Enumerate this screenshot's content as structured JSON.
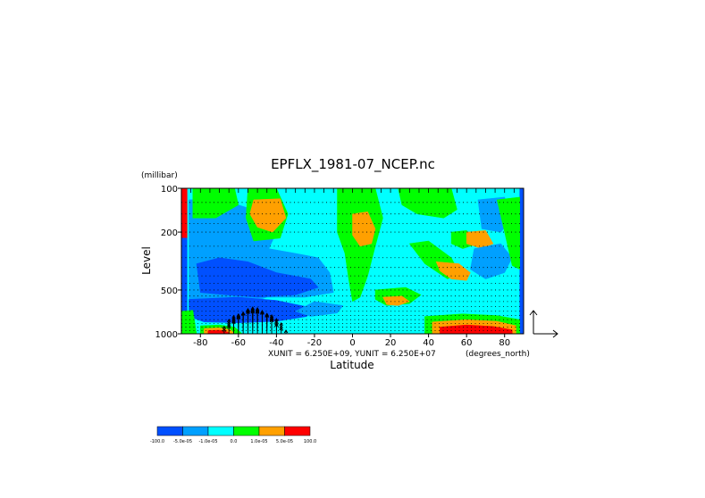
{
  "chart_data": {
    "type": "heatmap",
    "title": "EPFLX_1981-07_NCEP.nc",
    "xlabel": "Latitude",
    "x_units": "(degrees_north)",
    "ylabel": "Level",
    "y_units": "(millibar)",
    "x_ticks": [
      -80,
      -60,
      -40,
      -20,
      0,
      20,
      40,
      60,
      80
    ],
    "x_tick_labels": [
      "-80",
      "-60",
      "-40",
      "-20",
      "0",
      "20",
      "40",
      "60",
      "80"
    ],
    "y_ticks": [
      100,
      200,
      500,
      1000
    ],
    "y_tick_labels": [
      "100",
      "200",
      "500",
      "1000"
    ],
    "xlim": [
      -90,
      90
    ],
    "ylim": [
      1000,
      100
    ],
    "y_scale": "log",
    "vector_units_label": "XUNIT = 6.250E+09, YUNIT = 6.250E+07",
    "colorbar": {
      "colors": [
        "#0050ff",
        "#00a0ff",
        "#00ffff",
        "#00ff00",
        "#ffa000",
        "#ff0000"
      ],
      "tick_labels": [
        "-100.0",
        "-5.0e-05",
        "-1.0e-05",
        "0.0",
        "1.0e-05",
        "5.0e-05",
        "100.0"
      ]
    },
    "regions": [
      {
        "level": 5,
        "polygon": [
          [
            -90,
            100
          ],
          [
            -87,
            100
          ],
          [
            -87,
            220
          ],
          [
            -90,
            220
          ]
        ]
      },
      {
        "level": 0,
        "polygon": [
          [
            -90,
            220
          ],
          [
            -87,
            220
          ],
          [
            -87,
            1000
          ],
          [
            -90,
            1000
          ]
        ]
      },
      {
        "level": 0,
        "polygon": [
          [
            88,
            100
          ],
          [
            90,
            100
          ],
          [
            90,
            1000
          ],
          [
            88,
            1000
          ]
        ]
      },
      {
        "level": 1,
        "polygon": [
          [
            -86,
            120
          ],
          [
            -72,
            118
          ],
          [
            -60,
            130
          ],
          [
            -45,
            150
          ],
          [
            -40,
            200
          ],
          [
            -44,
            260
          ],
          [
            -30,
            280
          ],
          [
            -18,
            300
          ],
          [
            -12,
            380
          ],
          [
            -10,
            520
          ],
          [
            -25,
            560
          ],
          [
            -45,
            560
          ],
          [
            -55,
            620
          ],
          [
            -70,
            660
          ],
          [
            -86,
            640
          ]
        ]
      },
      {
        "level": 0,
        "polygon": [
          [
            -82,
            330
          ],
          [
            -70,
            300
          ],
          [
            -55,
            320
          ],
          [
            -40,
            380
          ],
          [
            -22,
            420
          ],
          [
            -18,
            480
          ],
          [
            -30,
            540
          ],
          [
            -50,
            560
          ],
          [
            -66,
            540
          ],
          [
            -80,
            520
          ]
        ]
      },
      {
        "level": 0,
        "polygon": [
          [
            -86,
            580
          ],
          [
            -60,
            560
          ],
          [
            -40,
            590
          ],
          [
            -22,
            660
          ],
          [
            -24,
            760
          ],
          [
            -40,
            820
          ],
          [
            -60,
            840
          ],
          [
            -78,
            830
          ],
          [
            -86,
            760
          ]
        ]
      },
      {
        "level": 1,
        "polygon": [
          [
            -20,
            600
          ],
          [
            -5,
            640
          ],
          [
            -8,
            720
          ],
          [
            -22,
            760
          ],
          [
            -30,
            700
          ]
        ]
      },
      {
        "level": 3,
        "polygon": [
          [
            -84,
            100
          ],
          [
            -62,
            100
          ],
          [
            -60,
            130
          ],
          [
            -72,
            160
          ],
          [
            -84,
            160
          ]
        ]
      },
      {
        "level": 3,
        "polygon": [
          [
            -55,
            100
          ],
          [
            -40,
            100
          ],
          [
            -34,
            150
          ],
          [
            -38,
            220
          ],
          [
            -52,
            230
          ],
          [
            -56,
            160
          ]
        ]
      },
      {
        "level": 4,
        "polygon": [
          [
            -52,
            120
          ],
          [
            -38,
            118
          ],
          [
            -35,
            160
          ],
          [
            -42,
            200
          ],
          [
            -50,
            185
          ],
          [
            -54,
            150
          ]
        ]
      },
      {
        "level": 3,
        "polygon": [
          [
            -8,
            100
          ],
          [
            12,
            100
          ],
          [
            16,
            160
          ],
          [
            12,
            250
          ],
          [
            8,
            400
          ],
          [
            4,
            560
          ],
          [
            0,
            600
          ],
          [
            -2,
            420
          ],
          [
            -4,
            280
          ],
          [
            -8,
            200
          ]
        ]
      },
      {
        "level": 4,
        "polygon": [
          [
            0,
            150
          ],
          [
            8,
            145
          ],
          [
            12,
            190
          ],
          [
            10,
            240
          ],
          [
            4,
            250
          ],
          [
            0,
            210
          ]
        ]
      },
      {
        "level": 3,
        "polygon": [
          [
            24,
            100
          ],
          [
            52,
            100
          ],
          [
            55,
            140
          ],
          [
            48,
            160
          ],
          [
            34,
            150
          ],
          [
            26,
            130
          ]
        ]
      },
      {
        "level": 3,
        "polygon": [
          [
            30,
            240
          ],
          [
            40,
            230
          ],
          [
            52,
            300
          ],
          [
            56,
            380
          ],
          [
            50,
            420
          ],
          [
            38,
            330
          ]
        ]
      },
      {
        "level": 4,
        "polygon": [
          [
            44,
            320
          ],
          [
            56,
            330
          ],
          [
            62,
            380
          ],
          [
            60,
            430
          ],
          [
            52,
            420
          ],
          [
            46,
            370
          ]
        ]
      },
      {
        "level": 3,
        "polygon": [
          [
            52,
            200
          ],
          [
            60,
            195
          ],
          [
            66,
            240
          ],
          [
            58,
            260
          ],
          [
            52,
            240
          ]
        ]
      },
      {
        "level": 4,
        "polygon": [
          [
            60,
            200
          ],
          [
            70,
            195
          ],
          [
            74,
            240
          ],
          [
            68,
            260
          ],
          [
            60,
            240
          ]
        ]
      },
      {
        "level": 1,
        "polygon": [
          [
            66,
            120
          ],
          [
            80,
            115
          ],
          [
            84,
            160
          ],
          [
            78,
            200
          ],
          [
            68,
            190
          ]
        ]
      },
      {
        "level": 1,
        "polygon": [
          [
            64,
            260
          ],
          [
            78,
            240
          ],
          [
            84,
            300
          ],
          [
            80,
            380
          ],
          [
            70,
            420
          ],
          [
            62,
            360
          ]
        ]
      },
      {
        "level": 3,
        "polygon": [
          [
            76,
            120
          ],
          [
            88,
            115
          ],
          [
            88,
            360
          ],
          [
            84,
            340
          ],
          [
            80,
            200
          ]
        ]
      },
      {
        "level": 3,
        "polygon": [
          [
            12,
            500
          ],
          [
            28,
            480
          ],
          [
            36,
            540
          ],
          [
            30,
            620
          ],
          [
            18,
            640
          ],
          [
            12,
            580
          ]
        ]
      },
      {
        "level": 4,
        "polygon": [
          [
            16,
            560
          ],
          [
            26,
            550
          ],
          [
            30,
            600
          ],
          [
            24,
            640
          ],
          [
            18,
            630
          ]
        ]
      },
      {
        "level": 3,
        "polygon": [
          [
            38,
            760
          ],
          [
            58,
            730
          ],
          [
            76,
            750
          ],
          [
            88,
            800
          ],
          [
            88,
            1000
          ],
          [
            38,
            1000
          ]
        ]
      },
      {
        "level": 4,
        "polygon": [
          [
            42,
            830
          ],
          [
            60,
            800
          ],
          [
            76,
            820
          ],
          [
            86,
            880
          ],
          [
            86,
            1000
          ],
          [
            42,
            1000
          ]
        ]
      },
      {
        "level": 5,
        "polygon": [
          [
            46,
            900
          ],
          [
            60,
            870
          ],
          [
            74,
            890
          ],
          [
            84,
            940
          ],
          [
            84,
            1000
          ],
          [
            46,
            1000
          ]
        ]
      },
      {
        "level": 3,
        "polygon": [
          [
            -80,
            880
          ],
          [
            -70,
            870
          ],
          [
            -62,
            900
          ],
          [
            -58,
            1000
          ],
          [
            -80,
            1000
          ]
        ]
      },
      {
        "level": 4,
        "polygon": [
          [
            -78,
            920
          ],
          [
            -70,
            910
          ],
          [
            -64,
            940
          ],
          [
            -62,
            1000
          ],
          [
            -78,
            1000
          ]
        ]
      },
      {
        "level": 5,
        "polygon": [
          [
            -76,
            950
          ],
          [
            -70,
            945
          ],
          [
            -66,
            970
          ],
          [
            -64,
            1000
          ],
          [
            -76,
            1000
          ]
        ]
      },
      {
        "level": 3,
        "polygon": [
          [
            -90,
            700
          ],
          [
            -84,
            690
          ],
          [
            -82,
            1000
          ],
          [
            -90,
            1000
          ]
        ]
      }
    ],
    "grid": true,
    "vectors": "arrows at each grid point, largest between -70 and -30 near 1000 mb"
  }
}
